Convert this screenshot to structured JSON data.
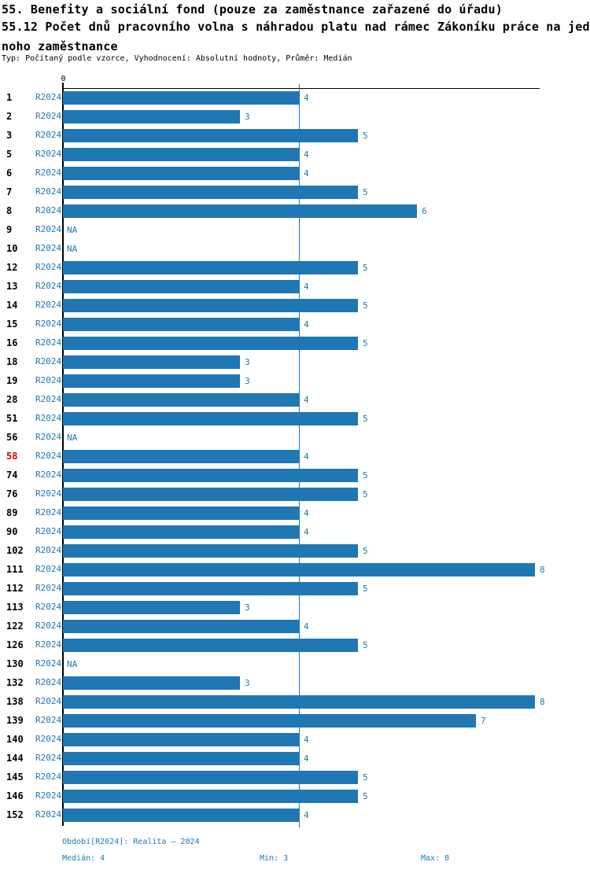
{
  "header": {
    "title_line1": "55. Benefity a sociální fond (pouze za zaměstnance zařazené do úřadu)",
    "title_line2": "55.12 Počet dnů pracovního volna s náhradou platu nad rámec Zákoníku práce na jed",
    "title_line3": "noho zaměstnance",
    "meta_line": "Typ: Počítaný podle vzorce, Vyhodnocení: Absolutní hodnoty, Průměr: Medián"
  },
  "chart_data": {
    "type": "bar",
    "orientation": "horizontal",
    "series_label": "R2024",
    "na_label": "NA",
    "x_axis": {
      "origin_label": "0",
      "min": 0,
      "max": 8,
      "median_line_at": 4,
      "grid": false
    },
    "rows": [
      {
        "id": "1",
        "value": 4
      },
      {
        "id": "2",
        "value": 3
      },
      {
        "id": "3",
        "value": 5
      },
      {
        "id": "5",
        "value": 4
      },
      {
        "id": "6",
        "value": 4
      },
      {
        "id": "7",
        "value": 5
      },
      {
        "id": "8",
        "value": 6
      },
      {
        "id": "9",
        "value": null
      },
      {
        "id": "10",
        "value": null
      },
      {
        "id": "12",
        "value": 5
      },
      {
        "id": "13",
        "value": 4
      },
      {
        "id": "14",
        "value": 5
      },
      {
        "id": "15",
        "value": 4
      },
      {
        "id": "16",
        "value": 5
      },
      {
        "id": "18",
        "value": 3
      },
      {
        "id": "19",
        "value": 3
      },
      {
        "id": "28",
        "value": 4
      },
      {
        "id": "51",
        "value": 5
      },
      {
        "id": "56",
        "value": null
      },
      {
        "id": "58",
        "value": 4,
        "highlight": true
      },
      {
        "id": "74",
        "value": 5
      },
      {
        "id": "76",
        "value": 5
      },
      {
        "id": "89",
        "value": 4
      },
      {
        "id": "90",
        "value": 4
      },
      {
        "id": "102",
        "value": 5
      },
      {
        "id": "111",
        "value": 8
      },
      {
        "id": "112",
        "value": 5
      },
      {
        "id": "113",
        "value": 3
      },
      {
        "id": "122",
        "value": 4
      },
      {
        "id": "126",
        "value": 5
      },
      {
        "id": "130",
        "value": null
      },
      {
        "id": "132",
        "value": 3
      },
      {
        "id": "138",
        "value": 8
      },
      {
        "id": "139",
        "value": 7
      },
      {
        "id": "140",
        "value": 4
      },
      {
        "id": "144",
        "value": 4
      },
      {
        "id": "145",
        "value": 5
      },
      {
        "id": "146",
        "value": 5
      },
      {
        "id": "152",
        "value": 4
      }
    ]
  },
  "footer": {
    "period_line": "Období[R2024]: Realita – 2024",
    "median_label": "Medián: 4",
    "min_label": "Min: 3",
    "max_label": "Max: 8"
  },
  "colors": {
    "bar": "#1f77b4",
    "accent_text": "#1f77b4",
    "highlight_id": "#e00000",
    "axis": "#000000"
  }
}
